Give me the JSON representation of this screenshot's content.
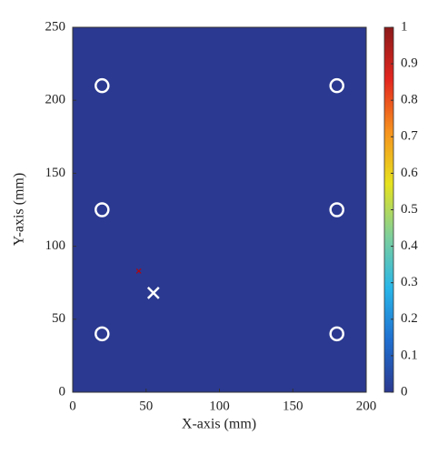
{
  "chart_data": {
    "type": "heatmap",
    "x_label": "X-axis (mm)",
    "y_label": "Y-axis (mm)",
    "xlim": [
      0,
      200
    ],
    "xticks": [
      0,
      50,
      100,
      150,
      200
    ],
    "ylim": [
      0,
      250
    ],
    "yticks": [
      0,
      50,
      100,
      150,
      200,
      250
    ],
    "field_value": 0,
    "colormap": [
      "#2b3990",
      "#1f6fd0",
      "#29b6e8",
      "#7fcf9a",
      "#e6e21e",
      "#f6921e",
      "#e3261f",
      "#8b1a1a"
    ],
    "clim": [
      0,
      1
    ],
    "cticks": [
      0,
      0.1,
      0.2,
      0.3,
      0.4,
      0.5,
      0.6,
      0.7,
      0.8,
      0.9,
      1
    ],
    "series": [
      {
        "marker": "circle",
        "color": "#ffffff",
        "x": [
          20,
          20,
          20,
          180,
          180,
          180
        ],
        "values": [
          40,
          125,
          210,
          40,
          125,
          210
        ]
      },
      {
        "marker": "cross",
        "color": "#ffffff",
        "x": [
          55
        ],
        "values": [
          68
        ]
      },
      {
        "marker": "small-x",
        "color": "#c00000",
        "x": [
          45
        ],
        "values": [
          83
        ]
      }
    ]
  }
}
